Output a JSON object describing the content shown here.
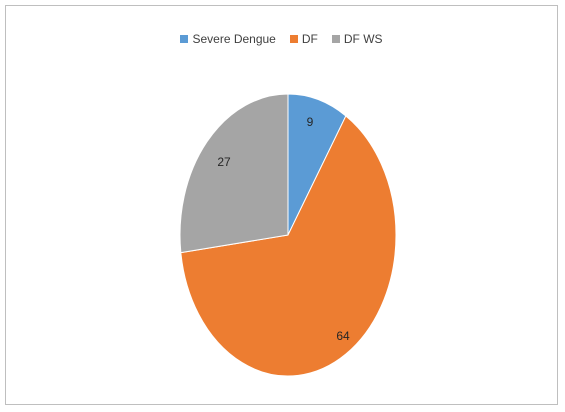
{
  "chart_data": {
    "type": "pie",
    "categories": [
      "Severe Dengue",
      "DF",
      "DF WS"
    ],
    "values": [
      9,
      64,
      27
    ],
    "colors": [
      "#5b9bd5",
      "#ed7d31",
      "#a5a5a5"
    ],
    "legend_position": "top",
    "data_labels": [
      "9",
      "64",
      "27"
    ]
  },
  "legend": [
    {
      "label": "Severe Dengue",
      "color": "#5b9bd5"
    },
    {
      "label": "DF",
      "color": "#ed7d31"
    },
    {
      "label": "DF WS",
      "color": "#a5a5a5"
    }
  ]
}
